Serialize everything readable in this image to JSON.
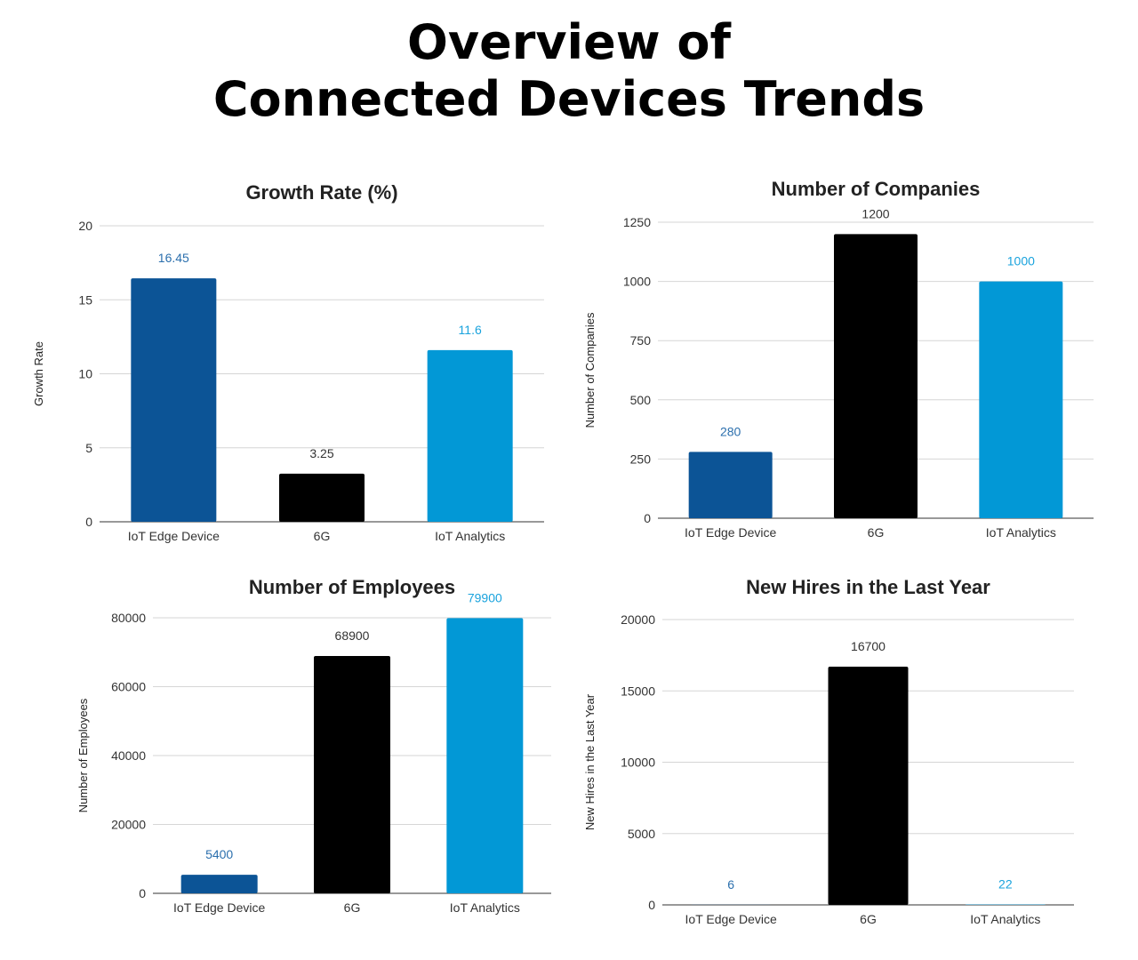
{
  "main_title": {
    "line1": "Overview of",
    "line2": "Connected Devices Trends"
  },
  "series_colors": [
    "#0c5496",
    "#000000",
    "#0298d6"
  ],
  "label_colors": [
    "#2b6fad",
    "#333333",
    "#1aa3dd"
  ],
  "chart_data": [
    {
      "type": "bar",
      "title": "Growth Rate (%)",
      "xlabel": "",
      "ylabel": "Growth Rate",
      "categories": [
        "IoT Edge Device",
        "6G",
        "IoT Analytics"
      ],
      "values": [
        16.45,
        3.25,
        11.6
      ],
      "value_labels": [
        "16.45",
        "3.25",
        "11.6"
      ],
      "ylim": [
        0,
        20
      ],
      "yticks": [
        0,
        5,
        10,
        15,
        20
      ],
      "grid": true
    },
    {
      "type": "bar",
      "title": "Number of Companies",
      "xlabel": "",
      "ylabel": "Number of Companies",
      "categories": [
        "IoT Edge Device",
        "6G",
        "IoT Analytics"
      ],
      "values": [
        280,
        1200,
        1000
      ],
      "value_labels": [
        "280",
        "1200",
        "1000"
      ],
      "ylim": [
        0,
        1250
      ],
      "yticks": [
        0,
        250,
        500,
        750,
        1000,
        1250
      ],
      "grid": true
    },
    {
      "type": "bar",
      "title": "Number of Employees",
      "xlabel": "",
      "ylabel": "Number of Employees",
      "categories": [
        "IoT Edge Device",
        "6G",
        "IoT Analytics"
      ],
      "values": [
        5400,
        68900,
        79900
      ],
      "value_labels": [
        "5400",
        "68900",
        "79900"
      ],
      "ylim": [
        0,
        80000
      ],
      "yticks": [
        0,
        20000,
        40000,
        60000,
        80000
      ],
      "grid": true
    },
    {
      "type": "bar",
      "title": "New Hires in the Last Year",
      "xlabel": "",
      "ylabel": "New Hires in the Last Year",
      "categories": [
        "IoT Edge Device",
        "6G",
        "IoT Analytics"
      ],
      "values": [
        6,
        16700,
        22
      ],
      "value_labels": [
        "6",
        "16700",
        "22"
      ],
      "ylim": [
        0,
        20000
      ],
      "yticks": [
        0,
        5000,
        10000,
        15000,
        20000
      ],
      "grid": true
    }
  ]
}
